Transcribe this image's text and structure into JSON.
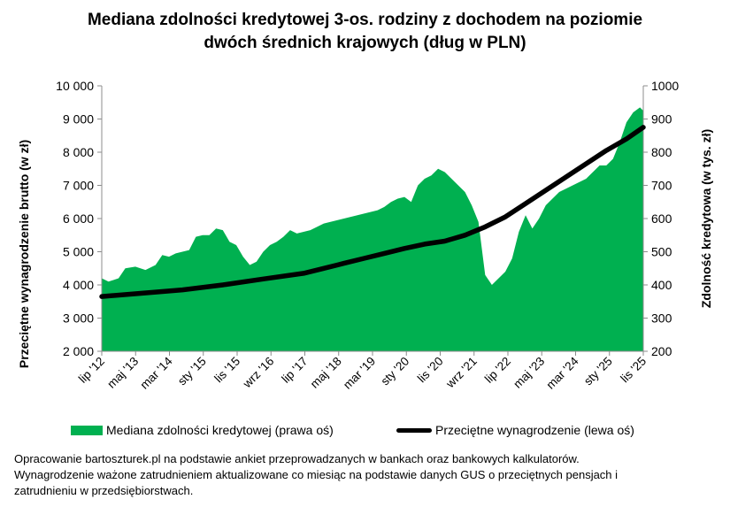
{
  "title": {
    "line1": "Mediana zdolności kredytowej 3-os. rodziny z dochodem na poziomie",
    "line2": "dwóch średnich krajowych (dług w PLN)"
  },
  "footnote": {
    "line1": "Opracowanie bartoszturek.pl na podstawie ankiet przeprowadzanych w bankach oraz bankowych kalkulatorów.",
    "line2": "Wynagrodzenie ważone zatrudnieniem aktualizowane co miesiąc na podstawie danych GUS o przeciętnych pensjach i",
    "line3": "zatrudnieniu w przedsiębiorstwach."
  },
  "chart_data": {
    "type": "area+line",
    "title": "Mediana zdolności kredytowej 3-os. rodziny z dochodem na poziomie dwóch średnich krajowych (dług w PLN)",
    "ylabel_left": "Przeciętne wynagrodzenie brutto (w zł)",
    "ylabel_right": "Zdolność kredytowa (w tys. zł)",
    "y_left_lim": [
      2000,
      10000
    ],
    "y_left_ticks": [
      "2 000",
      "3 000",
      "4 000",
      "5 000",
      "6 000",
      "7 000",
      "8 000",
      "9 000",
      "10 000"
    ],
    "y_right_lim": [
      200,
      1000
    ],
    "y_right_ticks": [
      "200",
      "300",
      "400",
      "500",
      "600",
      "700",
      "800",
      "900",
      "1000"
    ],
    "x_ticks": [
      "lip '12",
      "maj '13",
      "mar '14",
      "sty '15",
      "lis '15",
      "wrz '16",
      "lip '17",
      "maj '18",
      "mar '19",
      "sty '20",
      "lis '20",
      "wrz '21",
      "lip '22",
      "maj '23",
      "mar '24",
      "sty '25",
      "lis '25"
    ],
    "grid": false,
    "legend_position": "bottom",
    "colors": {
      "area": "#00b050",
      "line": "#000000"
    },
    "series": [
      {
        "name": "Mediana zdolności kredytowej (prawa oś)",
        "axis": "right",
        "kind": "area",
        "x": [
          "2012-07",
          "2012-09",
          "2012-12",
          "2013-02",
          "2013-05",
          "2013-08",
          "2013-11",
          "2014-01",
          "2014-03",
          "2014-05",
          "2014-07",
          "2014-09",
          "2014-11",
          "2015-01",
          "2015-03",
          "2015-05",
          "2015-07",
          "2015-09",
          "2015-11",
          "2016-01",
          "2016-03",
          "2016-05",
          "2016-07",
          "2016-09",
          "2016-11",
          "2017-01",
          "2017-03",
          "2017-05",
          "2017-07",
          "2017-09",
          "2017-11",
          "2018-01",
          "2018-03",
          "2018-05",
          "2018-07",
          "2018-09",
          "2018-11",
          "2019-01",
          "2019-03",
          "2019-05",
          "2019-07",
          "2019-09",
          "2019-11",
          "2020-01",
          "2020-03",
          "2020-05",
          "2020-07",
          "2020-09",
          "2020-11",
          "2021-01",
          "2021-03",
          "2021-05",
          "2021-07",
          "2021-09",
          "2021-11",
          "2022-01",
          "2022-03",
          "2022-05",
          "2022-07",
          "2022-09",
          "2022-11",
          "2023-01",
          "2023-03",
          "2023-05",
          "2023-07",
          "2023-09",
          "2023-11",
          "2024-01",
          "2024-03",
          "2024-05",
          "2024-07",
          "2024-09",
          "2024-11",
          "2025-01",
          "2025-03",
          "2025-05",
          "2025-07",
          "2025-09",
          "2025-11",
          "2025-12"
        ],
        "values": [
          420,
          410,
          420,
          450,
          455,
          445,
          460,
          490,
          485,
          495,
          500,
          505,
          545,
          550,
          550,
          570,
          565,
          530,
          520,
          485,
          460,
          470,
          500,
          520,
          530,
          545,
          565,
          555,
          560,
          565,
          575,
          585,
          590,
          595,
          600,
          605,
          610,
          615,
          620,
          625,
          635,
          650,
          660,
          665,
          650,
          700,
          720,
          730,
          750,
          740,
          720,
          700,
          680,
          640,
          590,
          430,
          400,
          420,
          440,
          480,
          560,
          610,
          570,
          600,
          640,
          660,
          680,
          690,
          700,
          710,
          720,
          740,
          760,
          760,
          780,
          830,
          890,
          920,
          935,
          925
        ]
      },
      {
        "name": "Przeciętne wynagrodzenie (lewa oś)",
        "axis": "left",
        "kind": "line",
        "x": [
          "2012-07",
          "2013-07",
          "2014-07",
          "2015-07",
          "2016-07",
          "2017-07",
          "2018-01",
          "2018-07",
          "2019-01",
          "2019-07",
          "2020-01",
          "2020-07",
          "2021-01",
          "2021-07",
          "2022-01",
          "2022-07",
          "2023-01",
          "2023-07",
          "2024-01",
          "2024-07",
          "2025-01",
          "2025-07",
          "2025-12"
        ],
        "values": [
          3650,
          3750,
          3850,
          4000,
          4180,
          4350,
          4500,
          4650,
          4800,
          4950,
          5100,
          5230,
          5320,
          5500,
          5750,
          6050,
          6450,
          6850,
          7250,
          7650,
          8050,
          8400,
          8750
        ]
      }
    ]
  }
}
